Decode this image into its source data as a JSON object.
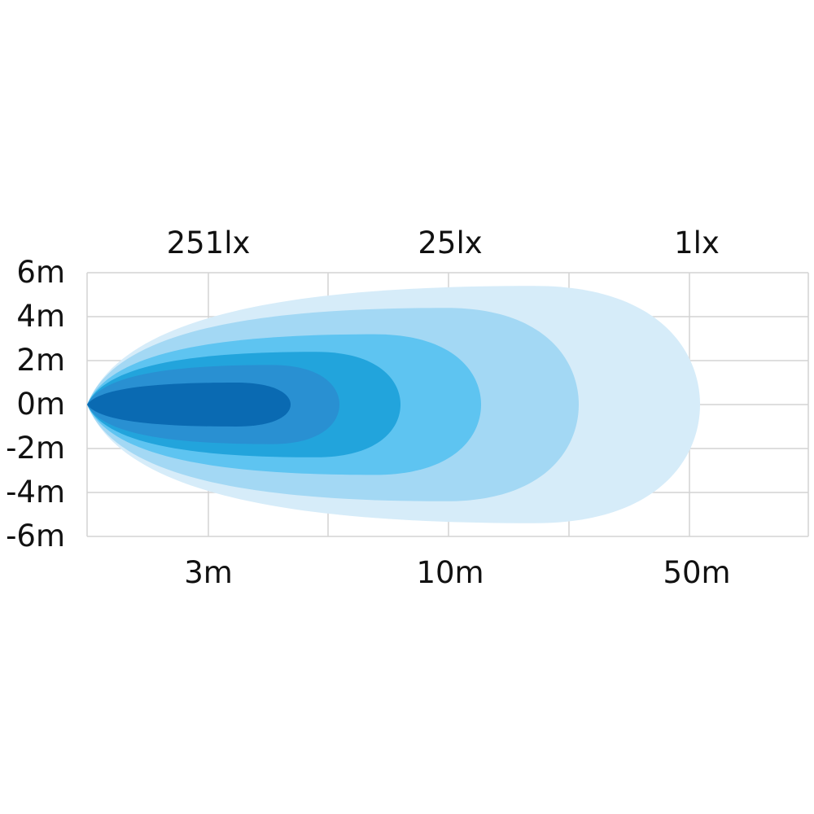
{
  "chart_data": {
    "type": "area",
    "title": "",
    "y_tick_labels": [
      "6m",
      "4m",
      "2m",
      "0m",
      "-2m",
      "-4m",
      "-6m"
    ],
    "y_ticks": [
      6,
      4,
      2,
      0,
      -2,
      -4,
      -6
    ],
    "ylim": [
      -6,
      6
    ],
    "x_tick_labels": [
      "3m",
      "10m",
      "50m"
    ],
    "lux_labels": [
      "251lx",
      "25lx",
      "1lx"
    ],
    "grid": true,
    "contours": [
      {
        "color": "#d6ecf9",
        "half_width_m": 5.4
      },
      {
        "color": "#a3d8f4",
        "half_width_m": 4.4
      },
      {
        "color": "#5ec4f1",
        "half_width_m": 3.2
      },
      {
        "color": "#22a4dc",
        "half_width_m": 2.4
      },
      {
        "color": "#2990d2",
        "half_width_m": 1.8
      },
      {
        "color": "#0a6ab2",
        "half_width_m": 1.0
      }
    ]
  }
}
